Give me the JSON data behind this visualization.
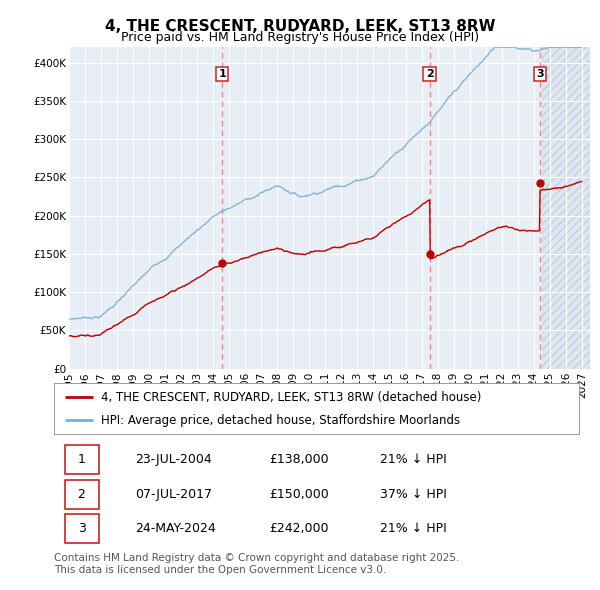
{
  "title": "4, THE CRESCENT, RUDYARD, LEEK, ST13 8RW",
  "subtitle": "Price paid vs. HM Land Registry's House Price Index (HPI)",
  "xlim": [
    1995.0,
    2027.5
  ],
  "ylim": [
    0,
    420000
  ],
  "yticks": [
    0,
    50000,
    100000,
    150000,
    200000,
    250000,
    300000,
    350000,
    400000
  ],
  "ytick_labels": [
    "£0",
    "£50K",
    "£100K",
    "£150K",
    "£200K",
    "£250K",
    "£300K",
    "£350K",
    "£400K"
  ],
  "sale_dates": [
    2004.554,
    2017.516,
    2024.389
  ],
  "sale_prices": [
    138000,
    150000,
    242000
  ],
  "sale_labels": [
    "1",
    "2",
    "3"
  ],
  "hpi_color": "#7bafd4",
  "price_color": "#c00000",
  "vline_color": "#ee8888",
  "bg_color": "#ffffff",
  "plot_bg_color": "#e8eef5",
  "grid_color": "#ffffff",
  "legend_entries": [
    "4, THE CRESCENT, RUDYARD, LEEK, ST13 8RW (detached house)",
    "HPI: Average price, detached house, Staffordshire Moorlands"
  ],
  "table_rows": [
    [
      "1",
      "23-JUL-2004",
      "£138,000",
      "21% ↓ HPI"
    ],
    [
      "2",
      "07-JUL-2017",
      "£150,000",
      "37% ↓ HPI"
    ],
    [
      "3",
      "24-MAY-2024",
      "£242,000",
      "21% ↓ HPI"
    ]
  ],
  "footnote": "Contains HM Land Registry data © Crown copyright and database right 2025.\nThis data is licensed under the Open Government Licence v3.0.",
  "title_fontsize": 11,
  "subtitle_fontsize": 9,
  "tick_fontsize": 7.5,
  "legend_fontsize": 8.5,
  "table_fontsize": 9,
  "footnote_fontsize": 7.5
}
